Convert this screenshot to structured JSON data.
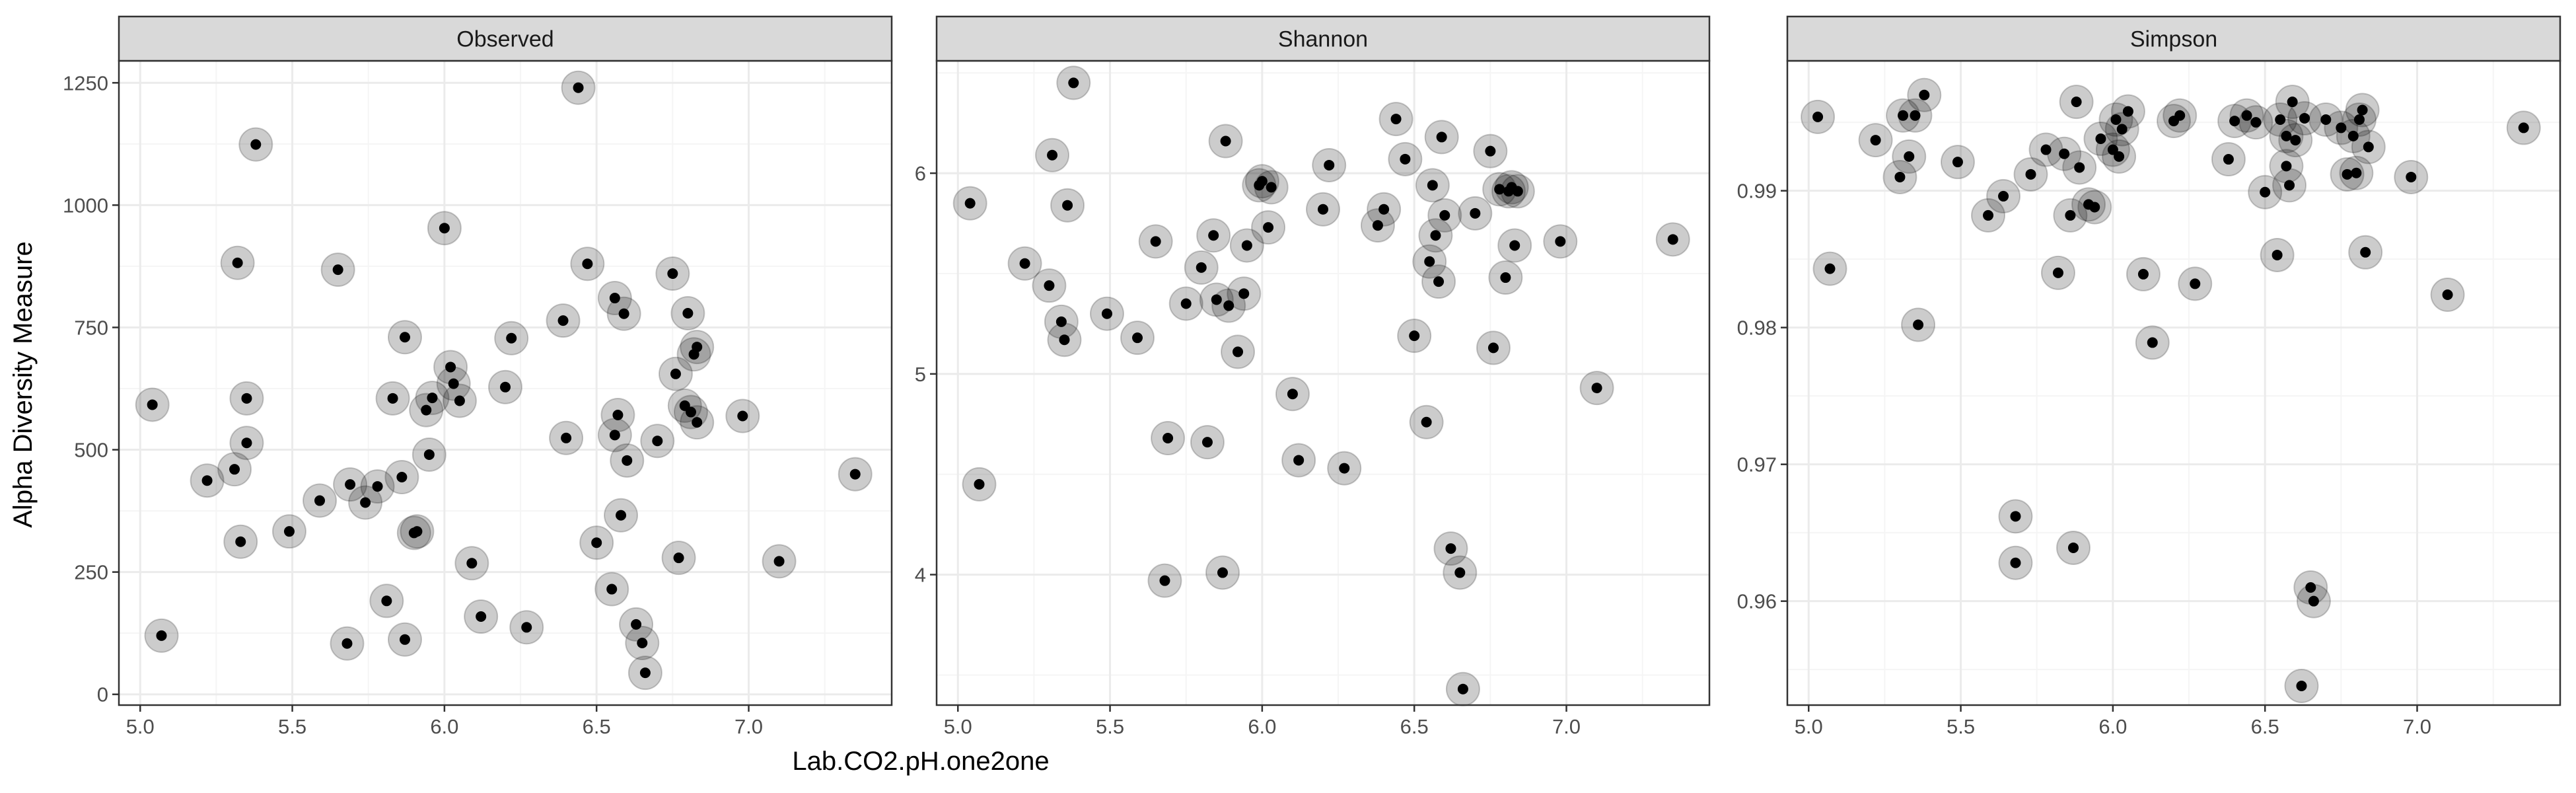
{
  "figure": {
    "ylabel": "Alpha Diversity Measure",
    "xlabel": "Lab.CO2.pH.one2one"
  },
  "colors": {
    "panel_border": "#333333",
    "strip_fill": "#d9d9d9",
    "grid_major": "#ebebeb",
    "grid_minor": "#f5f5f5",
    "point_fill": "#000000",
    "halo_fill": "#000000"
  },
  "chart_data": [
    {
      "type": "scatter",
      "title": "Observed",
      "xlim": [
        4.93,
        7.47
      ],
      "ylim": [
        -22,
        1295
      ],
      "xticks": [
        5.0,
        5.5,
        6.0,
        6.5,
        7.0
      ],
      "xtick_labels": [
        "5.0",
        "5.5",
        "6.0",
        "6.5",
        "7.0"
      ],
      "yticks": [
        0,
        250,
        500,
        750,
        1000,
        1250
      ],
      "ytick_labels": [
        "0",
        "250",
        "500",
        "750",
        "1000",
        "1250"
      ],
      "points": [
        [
          5.04,
          592
        ],
        [
          5.07,
          120
        ],
        [
          5.22,
          437
        ],
        [
          5.31,
          460
        ],
        [
          5.32,
          882
        ],
        [
          5.33,
          312
        ],
        [
          5.35,
          514
        ],
        [
          5.35,
          605
        ],
        [
          5.38,
          1124
        ],
        [
          5.49,
          333
        ],
        [
          5.59,
          396
        ],
        [
          5.65,
          868
        ],
        [
          5.68,
          104
        ],
        [
          5.69,
          429
        ],
        [
          5.74,
          392
        ],
        [
          5.78,
          425
        ],
        [
          5.81,
          191
        ],
        [
          5.83,
          605
        ],
        [
          5.86,
          444
        ],
        [
          5.87,
          112
        ],
        [
          5.87,
          730
        ],
        [
          5.9,
          330
        ],
        [
          5.91,
          333
        ],
        [
          5.94,
          581
        ],
        [
          5.95,
          490
        ],
        [
          5.96,
          606
        ],
        [
          6.0,
          953
        ],
        [
          6.02,
          669
        ],
        [
          6.03,
          635
        ],
        [
          6.05,
          600
        ],
        [
          6.09,
          268
        ],
        [
          6.12,
          159
        ],
        [
          6.2,
          628
        ],
        [
          6.22,
          728
        ],
        [
          6.27,
          137
        ],
        [
          6.39,
          764
        ],
        [
          6.4,
          524
        ],
        [
          6.44,
          1240
        ],
        [
          6.47,
          880
        ],
        [
          6.5,
          310
        ],
        [
          6.55,
          215
        ],
        [
          6.56,
          810
        ],
        [
          6.56,
          530
        ],
        [
          6.57,
          571
        ],
        [
          6.58,
          366
        ],
        [
          6.59,
          778
        ],
        [
          6.6,
          478
        ],
        [
          6.63,
          143
        ],
        [
          6.65,
          105
        ],
        [
          6.66,
          44
        ],
        [
          6.7,
          518
        ],
        [
          6.75,
          860
        ],
        [
          6.76,
          655
        ],
        [
          6.77,
          279
        ],
        [
          6.79,
          590
        ],
        [
          6.8,
          779
        ],
        [
          6.81,
          577
        ],
        [
          6.82,
          695
        ],
        [
          6.83,
          556
        ],
        [
          6.83,
          710
        ],
        [
          6.98,
          569
        ],
        [
          7.1,
          272
        ],
        [
          7.35,
          450
        ]
      ]
    },
    {
      "type": "scatter",
      "title": "Shannon",
      "xlim": [
        4.93,
        7.47
      ],
      "ylim": [
        3.35,
        6.56
      ],
      "xticks": [
        5.0,
        5.5,
        6.0,
        6.5,
        7.0
      ],
      "xtick_labels": [
        "5.0",
        "5.5",
        "6.0",
        "6.5",
        "7.0"
      ],
      "yticks": [
        4,
        5,
        6
      ],
      "ytick_labels": [
        "4",
        "5",
        "6"
      ],
      "points": [
        [
          5.04,
          5.85
        ],
        [
          5.07,
          4.45
        ],
        [
          5.22,
          5.55
        ],
        [
          5.3,
          5.44
        ],
        [
          5.31,
          6.09
        ],
        [
          5.34,
          5.26
        ],
        [
          5.35,
          5.17
        ],
        [
          5.36,
          5.84
        ],
        [
          5.38,
          6.45
        ],
        [
          5.49,
          5.3
        ],
        [
          5.59,
          5.18
        ],
        [
          5.65,
          5.66
        ],
        [
          5.68,
          3.97
        ],
        [
          5.69,
          4.68
        ],
        [
          5.75,
          5.35
        ],
        [
          5.8,
          5.53
        ],
        [
          5.82,
          4.66
        ],
        [
          5.84,
          5.69
        ],
        [
          5.85,
          5.37
        ],
        [
          5.87,
          4.01
        ],
        [
          5.88,
          6.16
        ],
        [
          5.89,
          5.34
        ],
        [
          5.92,
          5.11
        ],
        [
          5.94,
          5.4
        ],
        [
          5.95,
          5.64
        ],
        [
          5.99,
          5.94
        ],
        [
          6.0,
          5.96
        ],
        [
          6.02,
          5.73
        ],
        [
          6.03,
          5.93
        ],
        [
          6.1,
          4.9
        ],
        [
          6.12,
          4.57
        ],
        [
          6.2,
          5.82
        ],
        [
          6.22,
          6.04
        ],
        [
          6.27,
          4.53
        ],
        [
          6.38,
          5.74
        ],
        [
          6.4,
          5.82
        ],
        [
          6.44,
          6.27
        ],
        [
          6.47,
          6.07
        ],
        [
          6.5,
          5.19
        ],
        [
          6.54,
          4.76
        ],
        [
          6.55,
          5.56
        ],
        [
          6.56,
          5.94
        ],
        [
          6.57,
          5.69
        ],
        [
          6.58,
          5.46
        ],
        [
          6.59,
          6.18
        ],
        [
          6.6,
          5.79
        ],
        [
          6.62,
          4.13
        ],
        [
          6.65,
          4.01
        ],
        [
          6.66,
          3.43
        ],
        [
          6.7,
          5.8
        ],
        [
          6.75,
          6.11
        ],
        [
          6.76,
          5.13
        ],
        [
          6.78,
          5.92
        ],
        [
          6.8,
          5.48
        ],
        [
          6.81,
          5.91
        ],
        [
          6.82,
          5.93
        ],
        [
          6.83,
          5.64
        ],
        [
          6.84,
          5.91
        ],
        [
          6.98,
          5.66
        ],
        [
          7.1,
          4.93
        ],
        [
          7.35,
          5.67
        ]
      ]
    },
    {
      "type": "scatter",
      "title": "Simpson",
      "xlim": [
        4.93,
        7.47
      ],
      "ylim": [
        0.9524,
        0.9995
      ],
      "xticks": [
        5.0,
        5.5,
        6.0,
        6.5,
        7.0
      ],
      "xtick_labels": [
        "5.0",
        "5.5",
        "6.0",
        "6.5",
        "7.0"
      ],
      "yticks": [
        0.96,
        0.97,
        0.98,
        0.99
      ],
      "ytick_labels": [
        "0.96",
        "0.97",
        "0.98",
        "0.99"
      ],
      "points": [
        [
          5.03,
          0.9954
        ],
        [
          5.07,
          0.9843
        ],
        [
          5.22,
          0.9937
        ],
        [
          5.3,
          0.991
        ],
        [
          5.31,
          0.9955
        ],
        [
          5.33,
          0.9925
        ],
        [
          5.35,
          0.9955
        ],
        [
          5.36,
          0.9802
        ],
        [
          5.38,
          0.997
        ],
        [
          5.49,
          0.9921
        ],
        [
          5.59,
          0.9882
        ],
        [
          5.64,
          0.9896
        ],
        [
          5.68,
          0.9662
        ],
        [
          5.68,
          0.9628
        ],
        [
          5.73,
          0.9912
        ],
        [
          5.78,
          0.993
        ],
        [
          5.82,
          0.984
        ],
        [
          5.84,
          0.9927
        ],
        [
          5.86,
          0.9882
        ],
        [
          5.87,
          0.9639
        ],
        [
          5.88,
          0.9965
        ],
        [
          5.89,
          0.9917
        ],
        [
          5.92,
          0.989
        ],
        [
          5.94,
          0.9888
        ],
        [
          5.96,
          0.9938
        ],
        [
          6.0,
          0.993
        ],
        [
          6.01,
          0.9952
        ],
        [
          6.02,
          0.9925
        ],
        [
          6.03,
          0.9945
        ],
        [
          6.05,
          0.9958
        ],
        [
          6.1,
          0.9839
        ],
        [
          6.13,
          0.9789
        ],
        [
          6.2,
          0.9951
        ],
        [
          6.22,
          0.9955
        ],
        [
          6.27,
          0.9832
        ],
        [
          6.38,
          0.9923
        ],
        [
          6.4,
          0.9951
        ],
        [
          6.44,
          0.9955
        ],
        [
          6.47,
          0.995
        ],
        [
          6.5,
          0.9899
        ],
        [
          6.54,
          0.9853
        ],
        [
          6.55,
          0.9952
        ],
        [
          6.57,
          0.994
        ],
        [
          6.57,
          0.9918
        ],
        [
          6.58,
          0.9904
        ],
        [
          6.59,
          0.9965
        ],
        [
          6.6,
          0.9937
        ],
        [
          6.62,
          0.9538
        ],
        [
          6.63,
          0.9953
        ],
        [
          6.65,
          0.961
        ],
        [
          6.66,
          0.96
        ],
        [
          6.7,
          0.9952
        ],
        [
          6.75,
          0.9946
        ],
        [
          6.77,
          0.9912
        ],
        [
          6.79,
          0.994
        ],
        [
          6.8,
          0.9913
        ],
        [
          6.81,
          0.9952
        ],
        [
          6.82,
          0.9959
        ],
        [
          6.83,
          0.9855
        ],
        [
          6.84,
          0.9932
        ],
        [
          6.98,
          0.991
        ],
        [
          7.1,
          0.9824
        ],
        [
          7.35,
          0.9946
        ]
      ]
    }
  ]
}
